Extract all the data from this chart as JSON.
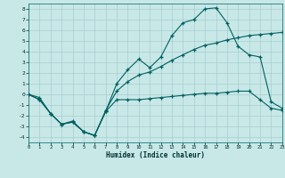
{
  "xlabel": "Humidex (Indice chaleur)",
  "bg_color": "#c8e8e8",
  "grid_color": "#a8cccc",
  "line_color": "#006060",
  "xlim": [
    0,
    23
  ],
  "ylim": [
    -4.5,
    8.5
  ],
  "xtick_vals": [
    0,
    1,
    2,
    3,
    4,
    5,
    6,
    7,
    8,
    9,
    10,
    11,
    12,
    13,
    14,
    15,
    16,
    17,
    18,
    19,
    20,
    21,
    22,
    23
  ],
  "ytick_vals": [
    -4,
    -3,
    -2,
    -1,
    0,
    1,
    2,
    3,
    4,
    5,
    6,
    7,
    8
  ],
  "curve1_x": [
    0,
    1,
    2,
    3,
    4,
    5,
    6,
    7,
    8,
    9,
    10,
    11,
    12,
    13,
    14,
    15,
    16,
    17,
    18,
    19,
    20,
    21,
    22,
    23
  ],
  "curve1_y": [
    0.0,
    -0.5,
    -1.8,
    -2.8,
    -2.6,
    -3.5,
    -3.85,
    -1.6,
    1.0,
    2.3,
    3.3,
    2.5,
    3.5,
    5.5,
    6.7,
    7.0,
    8.0,
    8.1,
    6.7,
    4.5,
    3.7,
    3.5,
    -0.7,
    -1.3
  ],
  "curve2_x": [
    0,
    1,
    2,
    3,
    4,
    5,
    6,
    7,
    8,
    9,
    10,
    11,
    12,
    13,
    14,
    15,
    16,
    17,
    18,
    19,
    20,
    21,
    22,
    23
  ],
  "curve2_y": [
    0.0,
    -0.5,
    -1.8,
    -2.8,
    -2.6,
    -3.5,
    -3.85,
    -1.6,
    -0.5,
    -0.5,
    -0.5,
    -0.4,
    -0.3,
    -0.2,
    -0.1,
    0.0,
    0.1,
    0.1,
    0.2,
    0.3,
    0.3,
    -0.5,
    -1.3,
    -1.5
  ],
  "curve3_x": [
    0,
    1,
    2,
    3,
    4,
    5,
    6,
    7,
    8,
    9,
    10,
    11,
    12,
    13,
    14,
    15,
    16,
    17,
    18,
    19,
    20,
    21,
    22,
    23
  ],
  "curve3_y": [
    0.0,
    -0.3,
    -1.8,
    -2.8,
    -2.5,
    -3.5,
    -3.85,
    -1.5,
    0.3,
    1.2,
    1.8,
    2.1,
    2.6,
    3.2,
    3.7,
    4.2,
    4.6,
    4.8,
    5.1,
    5.3,
    5.5,
    5.6,
    5.7,
    5.8
  ]
}
